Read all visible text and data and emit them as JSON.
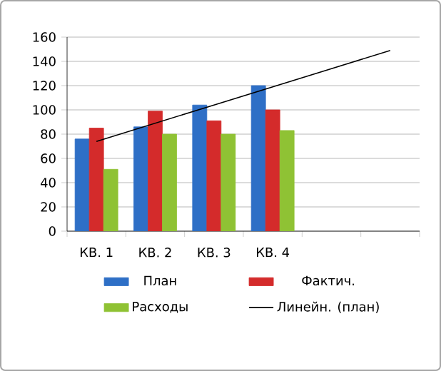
{
  "chart_data": {
    "type": "bar",
    "categories": [
      "КВ. 1",
      "КВ. 2",
      "КВ. 3",
      "КВ. 4",
      null,
      null
    ],
    "series": [
      {
        "name": "План",
        "color": "#2e6fc6",
        "values": [
          76,
          86,
          104,
          120,
          null,
          null
        ]
      },
      {
        "name": "Фактич.",
        "color": "#d42b2b",
        "values": [
          85,
          99,
          91,
          100,
          null,
          null
        ]
      },
      {
        "name": "Расходы",
        "color": "#8fc234",
        "values": [
          51,
          80,
          80,
          83,
          null,
          null
        ]
      },
      {
        "name": "Линейн. (план)",
        "type": "line",
        "color": "#000000",
        "values": [
          74,
          89,
          104,
          119,
          134,
          149
        ]
      }
    ],
    "ylim": [
      0,
      160
    ],
    "yticks": [
      0,
      20,
      40,
      60,
      80,
      100,
      120,
      140,
      160
    ],
    "grid": "y",
    "legend": "bottom"
  }
}
